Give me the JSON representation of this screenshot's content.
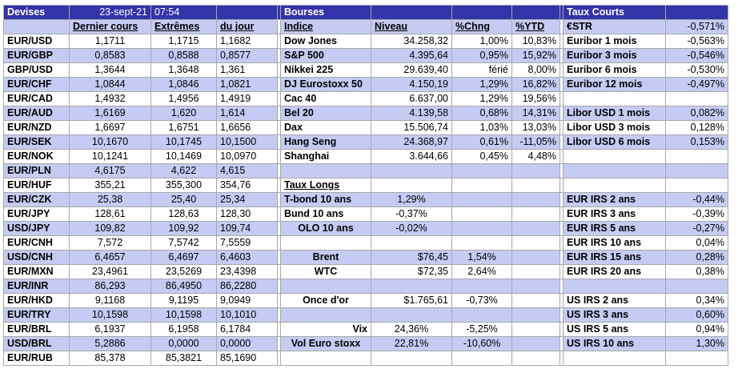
{
  "header": {
    "devises": "Devises",
    "date": "23-sept-21",
    "time": "07:54",
    "bourses": "Bourses",
    "taux_courts": "Taux Courts"
  },
  "columns": {
    "dernier_cours": "Dernier cours",
    "extremes": "Extrêmes",
    "du_jour": "du jour",
    "indice": "Indice",
    "niveau": "Niveau",
    "chng": "%Chng",
    "ytd": "%YTD",
    "estr": "€STR",
    "estr_value": "-0,571%"
  },
  "rows": [
    {
      "pair": "EUR/USD",
      "last": "1,1711",
      "high": "1,1715",
      "low": "1,1682",
      "idx": "Dow Jones",
      "level": "34.258,32",
      "chg": "1,00%",
      "ytd": "10,83%",
      "rate": "Euribor 1 mois",
      "rval": "-0,563%"
    },
    {
      "pair": "EUR/GBP",
      "last": "0,8583",
      "high": "0,8588",
      "low": "0,8577",
      "idx": "S&P 500",
      "level": "4.395,64",
      "chg": "0,95%",
      "ytd": "15,92%",
      "rate": "Euribor 3 mois",
      "rval": "-0,546%"
    },
    {
      "pair": "GBP/USD",
      "last": "1,3644",
      "high": "1,3648",
      "low": "1,361",
      "idx": "Nikkei 225",
      "level": "29.639,40",
      "chg": "férié",
      "ytd": "8,00%",
      "rate": "Euribor 6 mois",
      "rval": "-0,530%"
    },
    {
      "pair": "EUR/CHF",
      "last": "1,0844",
      "high": "1,0846",
      "low": "1,0821",
      "idx": "DJ Eurostoxx 50",
      "level": "4.150,19",
      "chg": "1,29%",
      "ytd": "16,82%",
      "rate": "Euribor 12 mois",
      "rval": "-0,497%"
    },
    {
      "pair": "EUR/CAD",
      "last": "1,4932",
      "high": "1,4956",
      "low": "1,4919",
      "idx": "Cac 40",
      "level": "6.637,00",
      "chg": "1,29%",
      "ytd": "19,56%",
      "rate": "",
      "rval": ""
    },
    {
      "pair": "EUR/AUD",
      "last": "1,6169",
      "high": "1,620",
      "low": "1,614",
      "idx": "Bel 20",
      "level": "4.139,58",
      "chg": "0,68%",
      "ytd": "14,31%",
      "rate": "Libor USD 1 mois",
      "rval": "0,082%"
    },
    {
      "pair": "EUR/NZD",
      "last": "1,6697",
      "high": "1,6751",
      "low": "1,6656",
      "idx": "Dax",
      "level": "15.506,74",
      "chg": "1,03%",
      "ytd": "13,03%",
      "rate": "Libor USD 3 mois",
      "rval": "0,128%"
    },
    {
      "pair": "EUR/SEK",
      "last": "10,1670",
      "high": "10,1745",
      "low": "10,1500",
      "idx": "Hang Seng",
      "level": "24.368,97",
      "chg": "0,61%",
      "ytd": "-11,05%",
      "rate": "Libor USD 6 mois",
      "rval": "0,153%"
    },
    {
      "pair": "EUR/NOK",
      "last": "10,1241",
      "high": "10,1469",
      "low": "10,0970",
      "idx": "Shanghai",
      "level": "3.644,66",
      "chg": "0,45%",
      "ytd": "4,48%",
      "rate": "",
      "rval": ""
    },
    {
      "pair": "EUR/PLN",
      "last": "4,6175",
      "high": "4,622",
      "low": "4,615",
      "idx": "",
      "level": "",
      "chg": "",
      "ytd": "",
      "rate": "",
      "rval": ""
    },
    {
      "pair": "EUR/HUF",
      "last": "355,21",
      "high": "355,300",
      "low": "354,76",
      "idx": "Taux Longs",
      "level": "",
      "chg": "",
      "ytd": "",
      "rate": "",
      "rval": ""
    },
    {
      "pair": "EUR/CZK",
      "last": "25,38",
      "high": "25,40",
      "low": "25,34",
      "idx": "T-bond 10 ans",
      "level": "1,29%",
      "chg": "",
      "ytd": "",
      "rate": "EUR IRS 2 ans",
      "rval": "-0,44%"
    },
    {
      "pair": "EUR/JPY",
      "last": "128,61",
      "high": "128,63",
      "low": "128,30",
      "idx": "Bund 10 ans",
      "level": "-0,37%",
      "chg": "",
      "ytd": "",
      "rate": "EUR IRS 3 ans",
      "rval": "-0,39%"
    },
    {
      "pair": "USD/JPY",
      "last": "109,82",
      "high": "109,92",
      "low": "109,74",
      "idx": "OLO 10 ans",
      "level": "-0,02%",
      "chg": "",
      "ytd": "",
      "rate": "EUR IRS 5 ans",
      "rval": "-0,27%"
    },
    {
      "pair": "EUR/CNH",
      "last": "7,572",
      "high": "7,5742",
      "low": "7,5559",
      "idx": "",
      "level": "",
      "chg": "",
      "ytd": "",
      "rate": "EUR IRS 10 ans",
      "rval": "0,04%"
    },
    {
      "pair": "USD/CNH",
      "last": "6,4657",
      "high": "6,4697",
      "low": "6,4603",
      "idx": "Brent",
      "level": "$76,45",
      "chg": "1,54%",
      "ytd": "",
      "rate": "EUR IRS 15 ans",
      "rval": "0,28%"
    },
    {
      "pair": "EUR/MXN",
      "last": "23,4961",
      "high": "23,5269",
      "low": "23,4398",
      "idx": "WTC",
      "level": "$72,35",
      "chg": "2,64%",
      "ytd": "",
      "rate": "EUR IRS 20 ans",
      "rval": "0,38%"
    },
    {
      "pair": "EUR/INR",
      "last": "86,293",
      "high": "86,4950",
      "low": "86,2280",
      "idx": "",
      "level": "",
      "chg": "",
      "ytd": "",
      "rate": "",
      "rval": ""
    },
    {
      "pair": "EUR/HKD",
      "last": "9,1168",
      "high": "9,1195",
      "low": "9,0949",
      "idx": "Once d'or",
      "level": "$1.765,61",
      "chg": "-0,73%",
      "ytd": "",
      "rate": "US IRS 2 ans",
      "rval": "0,34%"
    },
    {
      "pair": "EUR/TRY",
      "last": "10,1598",
      "high": "10,1598",
      "low": "10,1010",
      "idx": "",
      "level": "",
      "chg": "",
      "ytd": "",
      "rate": "US IRS 3 ans",
      "rval": "0,60%"
    },
    {
      "pair": "EUR/BRL",
      "last": "6,1937",
      "high": "6,1958",
      "low": "6,1784",
      "idx": "Vix",
      "level": "24,36%",
      "chg": "-5,25%",
      "ytd": "",
      "rate": "US IRS 5 ans",
      "rval": "0,94%"
    },
    {
      "pair": "USD/BRL",
      "last": "5,2886",
      "high": "0,0000",
      "low": "0,0000",
      "idx": "Vol Euro stoxx",
      "level": "22,81%",
      "chg": "-10,60%",
      "ytd": "",
      "rate": "US IRS 10 ans",
      "rval": "1,30%"
    },
    {
      "pair": "EUR/RUB",
      "last": "85,378",
      "high": "85,3821",
      "low": "85,1690",
      "idx": "",
      "level": "",
      "chg": "",
      "ytd": "",
      "rate": "",
      "rval": ""
    }
  ]
}
